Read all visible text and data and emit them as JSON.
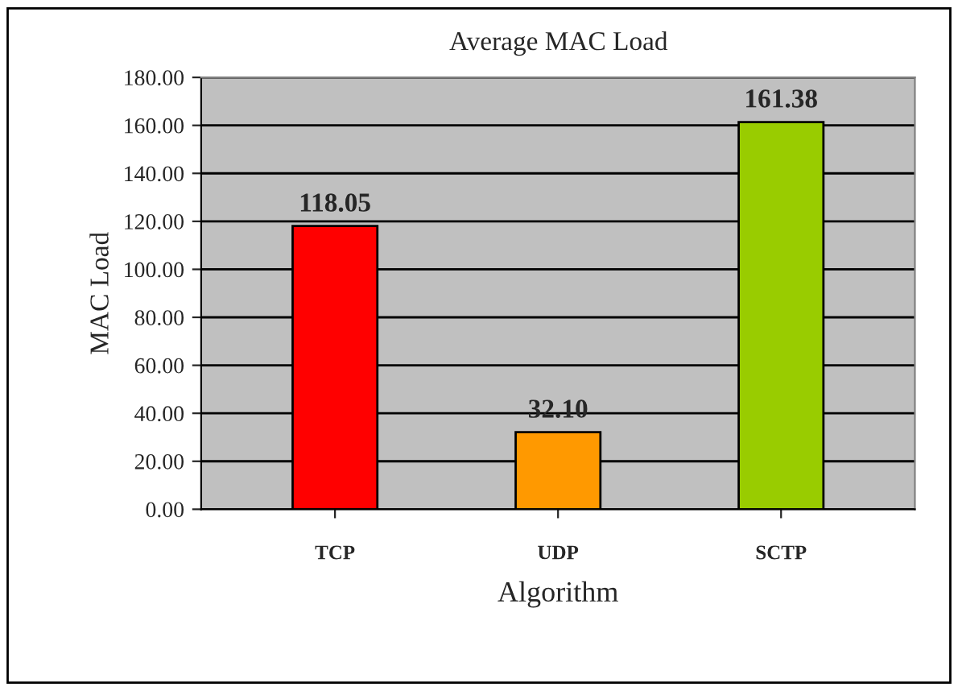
{
  "chart_data": {
    "type": "bar",
    "title": "Average MAC Load",
    "xlabel": "Algorithm",
    "ylabel": "MAC Load",
    "categories": [
      "TCP",
      "UDP",
      "SCTP"
    ],
    "values": [
      118.05,
      32.1,
      161.38
    ],
    "colors": [
      "#ff0000",
      "#ff9900",
      "#99cc00"
    ],
    "value_labels": [
      "118.05",
      "32.10",
      "161.38"
    ],
    "ylim": [
      0,
      180
    ],
    "yticks": [
      {
        "value": 0,
        "label": "0.00"
      },
      {
        "value": 20,
        "label": "20.00"
      },
      {
        "value": 40,
        "label": "40.00"
      },
      {
        "value": 60,
        "label": "60.00"
      },
      {
        "value": 80,
        "label": "80.00"
      },
      {
        "value": 100,
        "label": "100.00"
      },
      {
        "value": 120,
        "label": "120.00"
      },
      {
        "value": 140,
        "label": "140.00"
      },
      {
        "value": 160,
        "label": "160.00"
      },
      {
        "value": 180,
        "label": "180.00"
      }
    ],
    "grid": "y"
  }
}
